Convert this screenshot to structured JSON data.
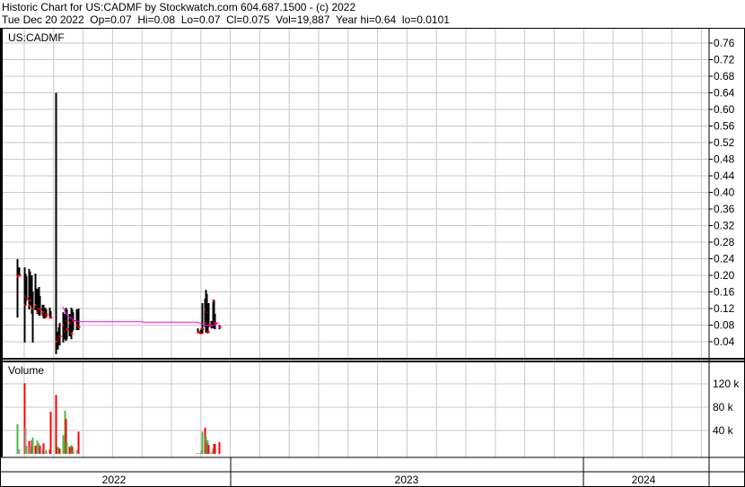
{
  "header": {
    "title": "Historic Chart for US:CADMF by Stockwatch.com 604.687.1500 - (c) 2022",
    "quote": "Tue Dec 20 2022  Op=0.07  Hi=0.08  Lo=0.07  Cl=0.075  Vol=19,887  Year hi=0.64  lo=0.0101"
  },
  "symbol": "US:CADMF",
  "volume_label": "Volume",
  "colors": {
    "up": "#4db848",
    "down": "#ff0000",
    "unchanged": "#a0a0a0",
    "close_tick": "#ff0000",
    "moving_average": "#ff00ff",
    "grid": "#c8c8c8"
  },
  "price_axis": {
    "ticks": [
      "0.04",
      "0.08",
      "0.12",
      "0.16",
      "0.20",
      "0.24",
      "0.28",
      "0.32",
      "0.36",
      "0.40",
      "0.44",
      "0.48",
      "0.52",
      "0.56",
      "0.60",
      "0.64",
      "0.68",
      "0.72",
      "0.76"
    ]
  },
  "volume_axis": {
    "ticks": [
      {
        "v": 40000,
        "label": "40 k"
      },
      {
        "v": 80000,
        "label": "80 k"
      },
      {
        "v": 120000,
        "label": "120 k"
      }
    ]
  },
  "time_axis": {
    "years": [
      "2022",
      "2023",
      "2024"
    ]
  },
  "chart_data": {
    "type": "ohlc",
    "price_range": [
      0,
      0.78
    ],
    "grid": true,
    "bars": [
      [
        "2022-05-25",
        0.239,
        0.098,
        0.198,
        51000,
        "up"
      ],
      [
        "2022-05-27",
        0.219,
        0.2,
        0.2,
        8000,
        "unchanged"
      ],
      [
        "2022-06-01",
        0.219,
        0.038,
        0.129,
        121000,
        "down"
      ],
      [
        "2022-06-02",
        0.204,
        0.129,
        0.15,
        45000,
        "unchanged"
      ],
      [
        "2022-06-03",
        0.198,
        0.139,
        0.144,
        14000,
        "up"
      ],
      [
        "2022-06-06",
        0.215,
        0.118,
        0.129,
        22000,
        "down"
      ],
      [
        "2022-06-07",
        0.209,
        0.129,
        0.139,
        12000,
        "unchanged"
      ],
      [
        "2022-06-09",
        0.2,
        0.107,
        0.12,
        23000,
        "down"
      ],
      [
        "2022-06-10",
        0.161,
        0.038,
        0.12,
        28000,
        "up"
      ],
      [
        "2022-06-13",
        0.204,
        0.116,
        0.129,
        14000,
        "down"
      ],
      [
        "2022-06-14",
        0.168,
        0.107,
        0.111,
        23000,
        "up"
      ],
      [
        "2022-06-16",
        0.172,
        0.103,
        0.12,
        18000,
        "unchanged"
      ],
      [
        "2022-06-17",
        0.15,
        0.103,
        0.118,
        14000,
        "down"
      ],
      [
        "2022-06-20",
        0.129,
        0.103,
        0.105,
        5000,
        "up"
      ],
      [
        "2022-06-21",
        0.129,
        0.096,
        0.111,
        18000,
        "down"
      ],
      [
        "2022-06-23",
        0.122,
        0.096,
        0.1,
        2000,
        "unchanged"
      ],
      [
        "2022-06-24",
        0.118,
        0.1,
        0.105,
        7000,
        "up"
      ],
      [
        "2022-06-27",
        0.122,
        0.096,
        0.1,
        7000,
        "down"
      ],
      [
        "2022-06-28",
        0.114,
        0.096,
        0.098,
        72000,
        "down"
      ],
      [
        "2022-07-04",
        0.64,
        0.0101,
        0.04,
        101000,
        "down"
      ],
      [
        "2022-07-06",
        0.064,
        0.021,
        0.042,
        12000,
        "up"
      ],
      [
        "2022-07-07",
        0.075,
        0.036,
        0.046,
        10000,
        "up"
      ],
      [
        "2022-07-08",
        0.085,
        0.031,
        0.053,
        9000,
        "down"
      ],
      [
        "2022-07-11",
        0.111,
        0.038,
        0.08,
        32000,
        "up"
      ],
      [
        "2022-07-13",
        0.107,
        0.046,
        0.064,
        74000,
        "up"
      ],
      [
        "2022-07-14",
        0.122,
        0.042,
        0.09,
        60000,
        "down"
      ],
      [
        "2022-07-15",
        0.118,
        0.046,
        0.07,
        20000,
        "up"
      ],
      [
        "2022-07-18",
        0.107,
        0.053,
        0.085,
        12000,
        "down"
      ],
      [
        "2022-07-20",
        0.122,
        0.046,
        0.06,
        15000,
        "up"
      ],
      [
        "2022-07-21",
        0.118,
        0.064,
        0.1,
        12000,
        "down"
      ],
      [
        "2022-07-22",
        0.111,
        0.068,
        0.09,
        6000,
        "up"
      ],
      [
        "2022-07-25",
        0.118,
        0.068,
        0.08,
        6000,
        "unchanged"
      ],
      [
        "2022-07-27",
        0.12,
        0.068,
        0.075,
        38000,
        "down"
      ],
      [
        "2022-11-28",
        0.072,
        0.06,
        0.062,
        1000,
        "down"
      ],
      [
        "2022-11-30",
        0.068,
        0.06,
        0.06,
        1000,
        "down"
      ],
      [
        "2022-12-01",
        0.072,
        0.06,
        0.062,
        5000,
        "up"
      ],
      [
        "2022-12-02",
        0.133,
        0.06,
        0.07,
        38000,
        "up"
      ],
      [
        "2022-12-05",
        0.144,
        0.075,
        0.118,
        45000,
        "down"
      ],
      [
        "2022-12-06",
        0.165,
        0.062,
        0.085,
        29000,
        "up"
      ],
      [
        "2022-12-07",
        0.155,
        0.085,
        0.111,
        18000,
        "down"
      ],
      [
        "2022-12-08",
        0.124,
        0.06,
        0.064,
        23000,
        "up"
      ],
      [
        "2022-12-09",
        0.133,
        0.075,
        0.08,
        15000,
        "down"
      ],
      [
        "2022-12-12",
        0.09,
        0.072,
        0.08,
        3000,
        "unchanged"
      ],
      [
        "2022-12-13",
        0.135,
        0.072,
        0.139,
        9000,
        "up"
      ],
      [
        "2022-12-14",
        0.139,
        0.075,
        0.09,
        17000,
        "down"
      ],
      [
        "2022-12-15",
        0.107,
        0.07,
        0.085,
        17000,
        "down"
      ],
      [
        "2022-12-20",
        0.08,
        0.07,
        0.075,
        19887,
        "down"
      ]
    ],
    "moving_average": [
      [
        "2022-07-11",
        0.125
      ],
      [
        "2022-07-13",
        0.115
      ],
      [
        "2022-07-15",
        0.106
      ],
      [
        "2022-07-20",
        0.096
      ],
      [
        "2022-07-25",
        0.09
      ],
      [
        "2022-07-29",
        0.088
      ],
      [
        "2022-10-01",
        0.088
      ],
      [
        "2022-10-03",
        0.087
      ],
      [
        "2022-11-28",
        0.087
      ],
      [
        "2022-11-30",
        0.084
      ],
      [
        "2022-12-06",
        0.08
      ],
      [
        "2022-12-12",
        0.078
      ],
      [
        "2022-12-15",
        0.08
      ],
      [
        "2022-12-20",
        0.086
      ]
    ]
  }
}
